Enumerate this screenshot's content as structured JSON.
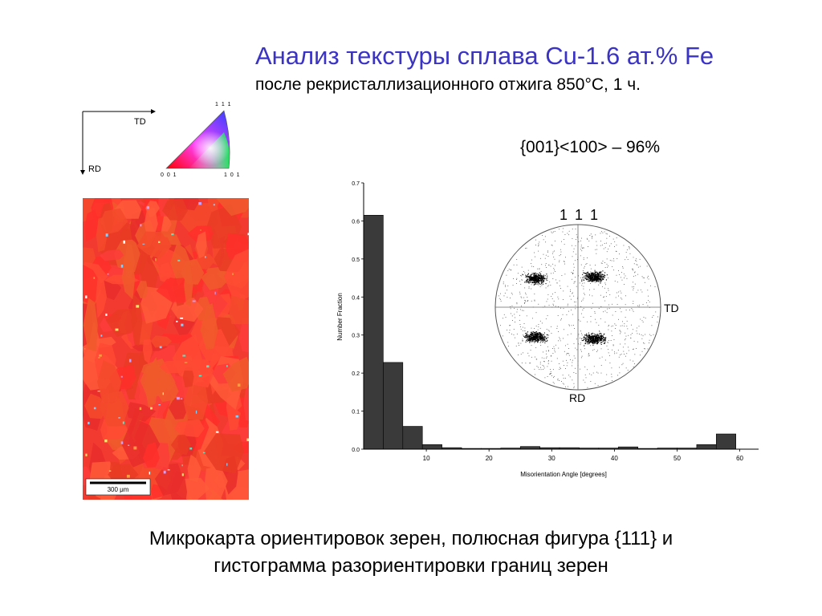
{
  "slide": {
    "title": "Анализ текстуры сплава Cu-1.6 ат.% Fe",
    "subtitle": "после рекристаллизационного отжига 850°C, 1 ч.",
    "texture_component": "{001}<100> – 96%",
    "caption_line1": "Микрокарта ориентировок зерен, полюсная фигура {111} и",
    "caption_line2": "гистограмма разориентировки границ зерен"
  },
  "orientation_key": {
    "td_label": "TD",
    "rd_label": "RD",
    "corner_111": "1 1 1",
    "corner_001": "0 0 1",
    "corner_101": "1 0 1"
  },
  "ebsd_map": {
    "scale_bar_label": "300 μm",
    "base_color": "#f23a30"
  },
  "pole_figure": {
    "label_top": "1 1 1",
    "label_right": "TD",
    "label_bottom": "RD"
  },
  "chart_data": {
    "type": "bar",
    "xlabel": "Misorientation Angle [degrees]",
    "ylabel": "Number Fraction",
    "xlim": [
      0,
      63
    ],
    "ylim": [
      0,
      0.7
    ],
    "xticks": [
      "10",
      "20",
      "30",
      "40",
      "50",
      "60"
    ],
    "xtick_values": [
      10,
      20,
      30,
      40,
      50,
      60
    ],
    "yticks": [
      "0.0",
      "0.1",
      "0.2",
      "0.3",
      "0.4",
      "0.5",
      "0.6",
      "0.7"
    ],
    "ytick_values": [
      0,
      0.1,
      0.2,
      0.3,
      0.4,
      0.5,
      0.6,
      0.7
    ],
    "bin_width": 3.125,
    "bin_starts": [
      0,
      3.125,
      6.25,
      9.375,
      12.5,
      15.625,
      18.75,
      21.875,
      25,
      28.125,
      31.25,
      34.375,
      37.5,
      40.625,
      43.75,
      46.875,
      50,
      53.125,
      56.25,
      59.375
    ],
    "values": [
      0.615,
      0.228,
      0.06,
      0.012,
      0.004,
      0.002,
      0.002,
      0.003,
      0.007,
      0.004,
      0.004,
      0.003,
      0.003,
      0.006,
      0.002,
      0.003,
      0.003,
      0.012,
      0.04,
      0.0
    ],
    "bar_color": "#3a3a3a"
  }
}
